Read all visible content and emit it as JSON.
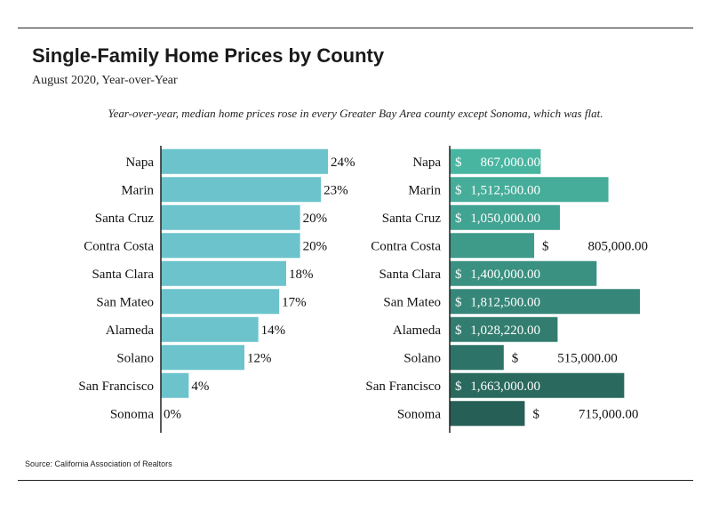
{
  "header": {
    "title": "Single-Family Home Prices by County",
    "subtitle": "August 2020, Year-over-Year",
    "note": "Year-over-year, median home prices rose in every Greater Bay Area county except Sonoma, which was flat."
  },
  "footer": {
    "source": "Source:  California Association of Realtors"
  },
  "colors": {
    "left_bars": "#6cc3cc",
    "right_bars": [
      "#48b5a1",
      "#45ad99",
      "#41a391",
      "#3e9a89",
      "#3a9181",
      "#368779",
      "#327d70",
      "#2e7367",
      "#2a695e",
      "#265f55"
    ]
  },
  "chart_data": [
    {
      "type": "bar",
      "orientation": "horizontal",
      "categories": [
        "Napa",
        "Marin",
        "Santa Cruz",
        "Contra Costa",
        "Santa Clara",
        "San Mateo",
        "Alameda",
        "Solano",
        "San Francisco",
        "Sonoma"
      ],
      "values": [
        24,
        23,
        20,
        20,
        18,
        17,
        14,
        12,
        4,
        0
      ],
      "labels": [
        "24%",
        "23%",
        "20%",
        "20%",
        "18%",
        "17%",
        "14%",
        "12%",
        "4%",
        "0%"
      ],
      "unit": "%",
      "xlim": [
        0,
        24
      ]
    },
    {
      "type": "bar",
      "orientation": "horizontal",
      "categories": [
        "Napa",
        "Marin",
        "Santa Cruz",
        "Contra Costa",
        "Santa Clara",
        "San Mateo",
        "Alameda",
        "Solano",
        "San Francisco",
        "Sonoma"
      ],
      "values": [
        867000,
        1512500,
        1050000,
        805000,
        1400000,
        1812500,
        1028220,
        515000,
        1663000,
        715000
      ],
      "labels": [
        "867,000.00",
        "1,512,500.00",
        "1,050,000.00",
        "805,000.00",
        "1,400,000.00",
        "1,812,500.00",
        "1,028,220.00",
        "515,000.00",
        "1,663,000.00",
        "715,000.00"
      ],
      "currency_symbol": "$",
      "label_inside": [
        true,
        true,
        true,
        false,
        true,
        true,
        true,
        false,
        true,
        false
      ],
      "xlim": [
        0,
        1812500
      ]
    }
  ]
}
